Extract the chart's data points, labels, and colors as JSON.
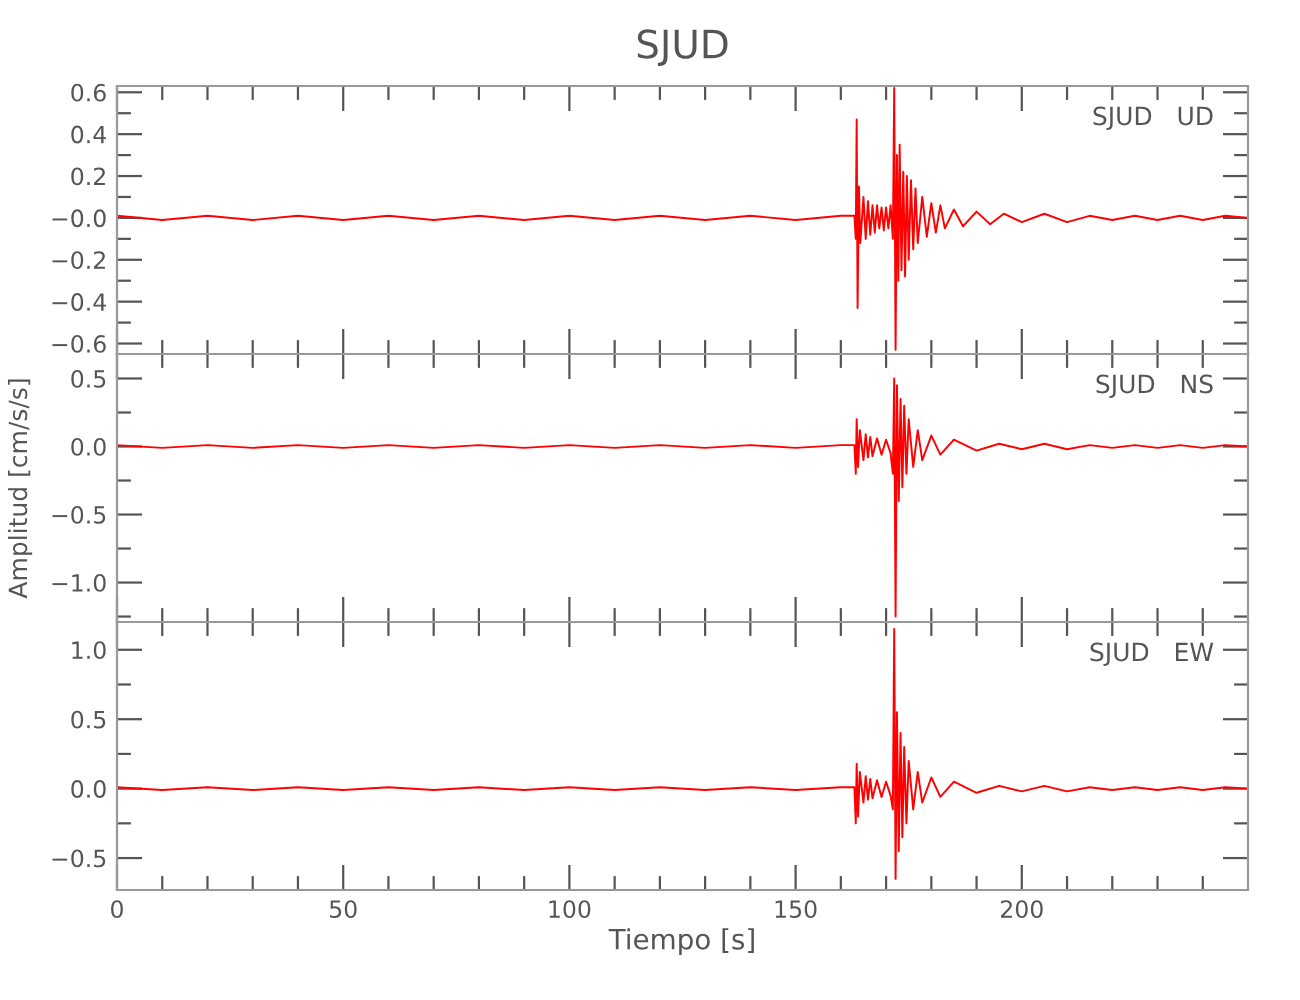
{
  "chart_data": [
    {
      "type": "line",
      "title": "SJUD",
      "annotations": [
        "SJUD   UD"
      ],
      "tick_labels": "y",
      "grid": false,
      "legend": false,
      "xlim": [
        0,
        250
      ],
      "xticks": [
        0,
        {
          "value": 10,
          "label": null
        },
        {
          "value": 20,
          "label": null
        },
        {
          "value": 30,
          "label": null
        },
        {
          "value": 40,
          "label": null
        },
        50,
        {
          "value": 60,
          "label": null
        },
        {
          "value": 70,
          "label": null
        },
        {
          "value": 80,
          "label": null
        },
        {
          "value": 90,
          "label": null
        },
        100,
        {
          "value": 110,
          "label": null
        },
        {
          "value": 120,
          "label": null
        },
        {
          "value": 130,
          "label": null
        },
        {
          "value": 140,
          "label": null
        },
        150,
        {
          "value": 160,
          "label": null
        },
        {
          "value": 170,
          "label": null
        },
        {
          "value": 180,
          "label": null
        },
        {
          "value": 190,
          "label": null
        },
        200,
        {
          "value": 210,
          "label": null
        },
        {
          "value": 220,
          "label": null
        },
        {
          "value": 230,
          "label": null
        },
        {
          "value": 240,
          "label": null
        }
      ],
      "ylim": [
        -0.65,
        0.63
      ],
      "yticks": [
        {
          "value": -0.6,
          "label": "−0.6"
        },
        {
          "value": -0.5,
          "label": null
        },
        {
          "value": -0.4,
          "label": "−0.4"
        },
        {
          "value": -0.3,
          "label": null
        },
        {
          "value": -0.2,
          "label": "−0.2"
        },
        {
          "value": -0.1,
          "label": null
        },
        {
          "value": 0,
          "label": "−0.0"
        },
        {
          "value": 0.1,
          "label": null
        },
        0.2,
        {
          "value": 0.3,
          "label": null
        },
        0.4,
        {
          "value": 0.5,
          "label": null
        },
        0.6
      ],
      "series": [
        {
          "color": "#ff0000",
          "line_style": "solid",
          "marker": "none",
          "x": [
            0,
            10,
            20,
            30,
            40,
            50,
            60,
            70,
            80,
            90,
            100,
            110,
            120,
            130,
            140,
            150,
            160,
            163,
            163.3,
            163.5,
            163.7,
            164,
            164.3,
            165,
            165.5,
            166,
            166.5,
            167,
            167.5,
            168,
            168.5,
            169,
            169.5,
            170,
            170.5,
            171,
            171.5,
            171.8,
            172.1,
            172.4,
            172.7,
            173,
            173.4,
            173.8,
            174.2,
            174.6,
            175,
            175.5,
            176,
            176.5,
            177,
            178,
            179,
            180,
            181,
            182,
            183,
            185,
            187,
            190,
            193,
            196,
            200,
            205,
            210,
            215,
            220,
            225,
            230,
            235,
            240,
            245,
            250
          ],
          "values": [
            0.01,
            -0.01,
            0.01,
            -0.01,
            0.01,
            -0.01,
            0.01,
            -0.01,
            0.01,
            -0.01,
            0.01,
            -0.01,
            0.01,
            -0.01,
            0.01,
            -0.01,
            0.01,
            0.01,
            -0.1,
            0.47,
            -0.43,
            0.15,
            -0.12,
            0.1,
            -0.1,
            0.08,
            -0.08,
            0.06,
            -0.07,
            0.06,
            -0.05,
            0.05,
            -0.06,
            0.05,
            -0.05,
            0.06,
            -0.1,
            0.62,
            -0.63,
            0.3,
            -0.3,
            0.35,
            -0.25,
            0.22,
            -0.28,
            0.2,
            -0.2,
            0.18,
            -0.15,
            0.14,
            -0.12,
            0.1,
            -0.09,
            0.07,
            -0.07,
            0.06,
            -0.05,
            0.04,
            -0.04,
            0.03,
            -0.03,
            0.02,
            -0.02,
            0.02,
            -0.02,
            0.01,
            -0.01,
            0.01,
            -0.01,
            0.01,
            -0.01,
            0.01,
            0
          ]
        }
      ]
    },
    {
      "type": "line",
      "ylabel": "Amplitud [cm/s/s]",
      "annotations": [
        "SJUD   NS"
      ],
      "tick_labels": "y",
      "grid": false,
      "legend": false,
      "xlim": [
        0,
        250
      ],
      "xticks": [
        0,
        {
          "value": 10,
          "label": null
        },
        {
          "value": 20,
          "label": null
        },
        {
          "value": 30,
          "label": null
        },
        {
          "value": 40,
          "label": null
        },
        50,
        {
          "value": 60,
          "label": null
        },
        {
          "value": 70,
          "label": null
        },
        {
          "value": 80,
          "label": null
        },
        {
          "value": 90,
          "label": null
        },
        100,
        {
          "value": 110,
          "label": null
        },
        {
          "value": 120,
          "label": null
        },
        {
          "value": 130,
          "label": null
        },
        {
          "value": 140,
          "label": null
        },
        150,
        {
          "value": 160,
          "label": null
        },
        {
          "value": 170,
          "label": null
        },
        {
          "value": 180,
          "label": null
        },
        {
          "value": 190,
          "label": null
        },
        200,
        {
          "value": 210,
          "label": null
        },
        {
          "value": 220,
          "label": null
        },
        {
          "value": 230,
          "label": null
        },
        {
          "value": 240,
          "label": null
        }
      ],
      "ylim": [
        -1.29,
        0.68
      ],
      "yticks": [
        {
          "value": -1.25,
          "label": null
        },
        {
          "value": -1.0,
          "label": "−1.0"
        },
        {
          "value": -0.75,
          "label": null
        },
        {
          "value": -0.5,
          "label": "−0.5"
        },
        {
          "value": -0.25,
          "label": null
        },
        {
          "value": 0,
          "label": "0.0"
        },
        {
          "value": 0.25,
          "label": null
        },
        0.5
      ],
      "series": [
        {
          "color": "#ff0000",
          "line_style": "solid",
          "marker": "none",
          "x": [
            0,
            10,
            20,
            30,
            40,
            50,
            60,
            70,
            80,
            90,
            100,
            110,
            120,
            130,
            140,
            150,
            160,
            163,
            163.3,
            163.5,
            163.8,
            164.2,
            165,
            165.5,
            166,
            166.5,
            167,
            168,
            169,
            170,
            171,
            171.5,
            171.8,
            172.1,
            172.4,
            172.8,
            173.2,
            173.6,
            174,
            174.5,
            175,
            176,
            177,
            178,
            180,
            182,
            185,
            190,
            195,
            200,
            205,
            210,
            215,
            220,
            225,
            230,
            235,
            240,
            245,
            250
          ],
          "values": [
            0.01,
            -0.01,
            0.01,
            -0.01,
            0.01,
            -0.01,
            0.01,
            -0.01,
            0.01,
            -0.01,
            0.01,
            -0.01,
            0.01,
            -0.01,
            0.01,
            -0.01,
            0.01,
            0.01,
            -0.2,
            0.2,
            -0.15,
            0.12,
            -0.1,
            0.09,
            -0.08,
            0.07,
            -0.07,
            0.06,
            -0.06,
            0.05,
            -0.05,
            -0.2,
            0.5,
            -1.25,
            0.45,
            -0.4,
            0.35,
            -0.3,
            0.3,
            -0.2,
            0.2,
            -0.15,
            0.12,
            -0.1,
            0.08,
            -0.06,
            0.05,
            -0.03,
            0.02,
            -0.02,
            0.02,
            -0.02,
            0.01,
            -0.01,
            0.01,
            -0.01,
            0.01,
            -0.01,
            0.01,
            0
          ]
        }
      ]
    },
    {
      "type": "line",
      "xlabel": "Tiempo [s]",
      "annotations": [
        "SJUD   EW"
      ],
      "grid": false,
      "legend": false,
      "xlim": [
        0,
        250
      ],
      "xticks": [
        0,
        {
          "value": 10,
          "label": null
        },
        {
          "value": 20,
          "label": null
        },
        {
          "value": 30,
          "label": null
        },
        {
          "value": 40,
          "label": null
        },
        50,
        {
          "value": 60,
          "label": null
        },
        {
          "value": 70,
          "label": null
        },
        {
          "value": 80,
          "label": null
        },
        {
          "value": 90,
          "label": null
        },
        100,
        {
          "value": 110,
          "label": null
        },
        {
          "value": 120,
          "label": null
        },
        {
          "value": 130,
          "label": null
        },
        {
          "value": 140,
          "label": null
        },
        150,
        {
          "value": 160,
          "label": null
        },
        {
          "value": 170,
          "label": null
        },
        {
          "value": 180,
          "label": null
        },
        {
          "value": 190,
          "label": null
        },
        200,
        {
          "value": 210,
          "label": null
        },
        {
          "value": 220,
          "label": null
        },
        {
          "value": 230,
          "label": null
        },
        {
          "value": 240,
          "label": null
        }
      ],
      "ylim": [
        -0.73,
        1.2
      ],
      "yticks": [
        {
          "value": -0.5,
          "label": "−0.5"
        },
        {
          "value": -0.25,
          "label": null
        },
        {
          "value": 0,
          "label": "0.0"
        },
        {
          "value": 0.25,
          "label": null
        },
        0.5,
        {
          "value": 0.75,
          "label": null
        },
        {
          "value": 1.0,
          "label": "1.0"
        }
      ],
      "series": [
        {
          "color": "#ff0000",
          "line_style": "solid",
          "marker": "none",
          "x": [
            0,
            10,
            20,
            30,
            40,
            50,
            60,
            70,
            80,
            90,
            100,
            110,
            120,
            130,
            140,
            150,
            160,
            163,
            163.3,
            163.5,
            163.8,
            164.2,
            165,
            165.5,
            166,
            166.5,
            167,
            168,
            169,
            170,
            171,
            171.5,
            171.8,
            172.1,
            172.4,
            172.8,
            173.2,
            173.6,
            174,
            174.5,
            175,
            176,
            177,
            178,
            180,
            182,
            185,
            190,
            195,
            200,
            205,
            210,
            215,
            220,
            225,
            230,
            235,
            240,
            245,
            250
          ],
          "values": [
            0.01,
            -0.01,
            0.01,
            -0.01,
            0.01,
            -0.01,
            0.01,
            -0.01,
            0.01,
            -0.01,
            0.01,
            -0.01,
            0.01,
            -0.01,
            0.01,
            -0.01,
            0.01,
            0.01,
            -0.25,
            0.18,
            -0.2,
            0.12,
            -0.1,
            0.09,
            -0.08,
            0.07,
            -0.07,
            0.06,
            -0.06,
            0.05,
            -0.05,
            -0.15,
            1.15,
            -0.65,
            0.55,
            -0.45,
            0.4,
            -0.35,
            0.3,
            -0.25,
            0.2,
            -0.15,
            0.12,
            -0.1,
            0.08,
            -0.06,
            0.05,
            -0.03,
            0.02,
            -0.02,
            0.02,
            -0.02,
            0.01,
            -0.01,
            0.01,
            -0.01,
            0.01,
            -0.01,
            0.01,
            0
          ]
        }
      ]
    }
  ]
}
